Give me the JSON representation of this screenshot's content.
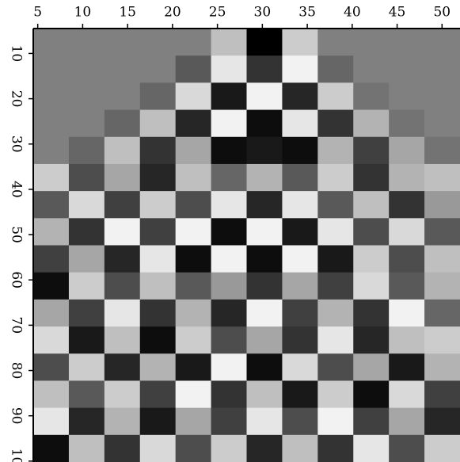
{
  "chart_data": {
    "type": "raster",
    "xlim": [
      4.5,
      52
    ],
    "ylim": [
      4.5,
      100.2
    ],
    "y_reversed": true,
    "xticks": [
      5,
      10,
      15,
      20,
      25,
      30,
      35,
      40,
      45,
      50
    ],
    "yticks": [
      10,
      20,
      30,
      40,
      50,
      60,
      70,
      80,
      90,
      100
    ],
    "clim": [
      -1,
      1
    ],
    "values": [
      [
        0,
        0,
        0,
        0,
        0,
        0.5,
        -1,
        0.6,
        0,
        0,
        0,
        0
      ],
      [
        0,
        0,
        0,
        0,
        -0.3,
        0.8,
        -0.6,
        0.9,
        -0.2,
        0,
        0,
        0
      ],
      [
        0,
        0,
        0,
        -0.2,
        0.7,
        -0.8,
        0.9,
        -0.7,
        0.6,
        -0.1,
        0,
        0
      ],
      [
        0,
        0,
        -0.2,
        0.5,
        -0.7,
        0.9,
        -0.9,
        0.8,
        -0.6,
        0.4,
        -0.1,
        0
      ],
      [
        0,
        -0.2,
        0.5,
        -0.6,
        0.3,
        -0.9,
        -0.8,
        -0.9,
        0.4,
        -0.5,
        0.3,
        -0.1
      ],
      [
        0.6,
        -0.4,
        0.3,
        -0.7,
        0.5,
        -0.2,
        0.4,
        -0.3,
        0.6,
        -0.6,
        0.4,
        0.5
      ],
      [
        -0.3,
        0.7,
        -0.5,
        0.6,
        -0.4,
        0.8,
        -0.7,
        0.8,
        -0.3,
        0.5,
        -0.6,
        0.2
      ],
      [
        0.4,
        -0.6,
        0.9,
        -0.5,
        0.9,
        -0.9,
        0.9,
        -0.8,
        0.8,
        -0.4,
        0.7,
        -0.3
      ],
      [
        -0.5,
        0.3,
        -0.7,
        0.8,
        -0.9,
        0.9,
        -0.9,
        0.9,
        -0.8,
        0.6,
        -0.4,
        0.5
      ],
      [
        -0.9,
        0.6,
        -0.4,
        0.5,
        -0.3,
        0.2,
        -0.6,
        0.3,
        -0.5,
        0.7,
        -0.3,
        0.4
      ],
      [
        0.3,
        -0.5,
        0.8,
        -0.6,
        0.4,
        -0.7,
        0.9,
        -0.5,
        0.4,
        -0.6,
        0.9,
        -0.2
      ],
      [
        0.7,
        -0.8,
        0.5,
        -0.9,
        0.6,
        -0.4,
        0.3,
        -0.6,
        0.8,
        -0.7,
        0.5,
        0.6
      ],
      [
        -0.4,
        0.6,
        -0.7,
        0.4,
        -0.8,
        0.9,
        -0.9,
        0.7,
        -0.4,
        0.3,
        -0.8,
        0.4
      ],
      [
        0.5,
        -0.3,
        0.6,
        -0.5,
        0.9,
        -0.6,
        0.5,
        -0.8,
        0.6,
        -0.9,
        0.7,
        -0.5
      ],
      [
        0.8,
        -0.7,
        0.4,
        -0.8,
        0.3,
        -0.5,
        0.8,
        -0.4,
        0.9,
        -0.5,
        0.3,
        -0.7
      ],
      [
        -0.9,
        0.5,
        -0.6,
        0.7,
        -0.4,
        0.6,
        -0.7,
        0.5,
        -0.6,
        0.8,
        -0.4,
        0.6
      ]
    ]
  }
}
